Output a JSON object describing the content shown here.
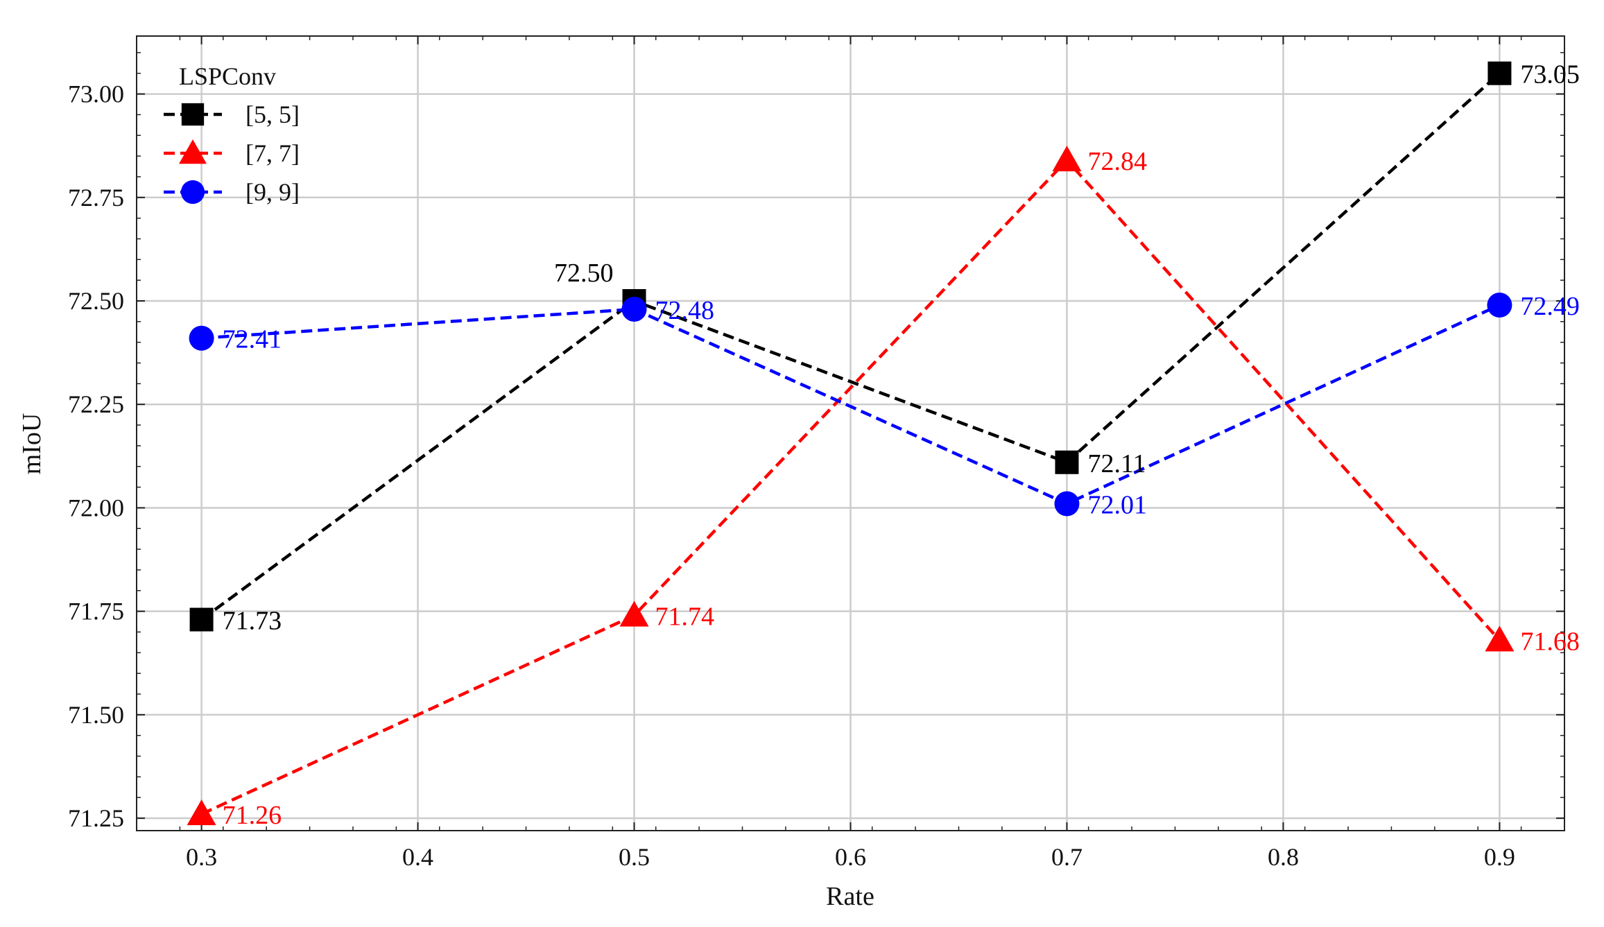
{
  "chart_data": {
    "type": "line",
    "title": "",
    "xlabel": "Rate",
    "ylabel": "mIoU",
    "x": [
      0.3,
      0.5,
      0.7,
      0.9
    ],
    "xlim": [
      0.27,
      0.93
    ],
    "ylim": [
      71.22,
      73.14
    ],
    "xticks": [
      0.3,
      0.4,
      0.5,
      0.6,
      0.7,
      0.8,
      0.9
    ],
    "xtick_labels": [
      "0.3",
      "0.4",
      "0.5",
      "0.6",
      "0.7",
      "0.8",
      "0.9"
    ],
    "yticks": [
      71.25,
      71.5,
      71.75,
      72.0,
      72.25,
      72.5,
      72.75,
      73.0
    ],
    "ytick_labels": [
      "71.25",
      "71.50",
      "71.75",
      "72.00",
      "72.25",
      "72.50",
      "72.75",
      "73.00"
    ],
    "grid": true,
    "legend": {
      "title": "LSPConv",
      "placement": "top-left"
    },
    "series": [
      {
        "name": "[5, 5]",
        "color": "#000000",
        "marker": "square",
        "line_style": "dashed",
        "values": [
          71.73,
          72.5,
          72.11,
          73.05
        ],
        "labels": [
          "71.73",
          "72.50",
          "72.11",
          "73.05"
        ]
      },
      {
        "name": "[7, 7]",
        "color": "#ff0000",
        "marker": "triangle",
        "line_style": "dashed",
        "values": [
          71.26,
          71.74,
          72.84,
          71.68
        ],
        "labels": [
          "71.26",
          "71.74",
          "72.84",
          "71.68"
        ]
      },
      {
        "name": "[9, 9]",
        "color": "#0000ff",
        "marker": "circle",
        "line_style": "dashed",
        "values": [
          72.41,
          72.48,
          72.01,
          72.49
        ],
        "labels": [
          "72.41",
          "72.48",
          "72.01",
          "72.49"
        ]
      }
    ]
  }
}
